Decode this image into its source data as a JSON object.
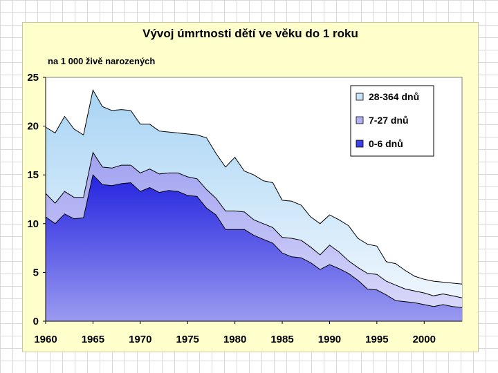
{
  "chart_data": {
    "type": "area",
    "stacked": true,
    "title": "Vývoj úmrtnosti dětí ve věku do 1 roku",
    "subtitle": "na 1 000 živě narozených",
    "xlabel": "",
    "ylabel": "",
    "xlim": [
      1960,
      2004
    ],
    "ylim": [
      0,
      25
    ],
    "yticks": [
      0,
      5,
      10,
      15,
      20,
      25
    ],
    "xticks": [
      1960,
      1965,
      1970,
      1975,
      1980,
      1985,
      1990,
      1995,
      2000
    ],
    "legend_position": "top-right",
    "x": [
      1960,
      1961,
      1962,
      1963,
      1964,
      1965,
      1966,
      1967,
      1968,
      1969,
      1970,
      1971,
      1972,
      1973,
      1974,
      1975,
      1976,
      1977,
      1978,
      1979,
      1980,
      1981,
      1982,
      1983,
      1984,
      1985,
      1986,
      1987,
      1988,
      1989,
      1990,
      1991,
      1992,
      1993,
      1994,
      1995,
      1996,
      1997,
      1998,
      1999,
      2000,
      2001,
      2002,
      2003,
      2004
    ],
    "series": [
      {
        "name": "0-6 dnů",
        "color": "#3a3ae8",
        "values": [
          10.7,
          10.0,
          11.0,
          10.5,
          10.6,
          15.0,
          14.0,
          13.9,
          14.1,
          14.2,
          13.3,
          13.7,
          13.2,
          13.4,
          13.3,
          12.9,
          12.8,
          11.6,
          10.9,
          9.4,
          9.4,
          9.4,
          8.8,
          8.4,
          8.0,
          7.0,
          6.6,
          6.5,
          6.0,
          5.3,
          5.8,
          5.4,
          4.9,
          4.2,
          3.3,
          3.2,
          2.7,
          2.1,
          2.0,
          1.9,
          1.7,
          1.5,
          1.7,
          1.5,
          1.4
        ]
      },
      {
        "name": "7-27 dnů",
        "color": "#b8b8f4",
        "values": [
          2.4,
          2.1,
          2.3,
          2.2,
          2.1,
          2.3,
          1.8,
          1.8,
          1.9,
          1.8,
          1.9,
          1.9,
          1.9,
          1.8,
          1.9,
          1.9,
          1.8,
          1.9,
          1.7,
          1.9,
          1.9,
          1.8,
          1.6,
          1.6,
          1.6,
          1.6,
          1.9,
          1.8,
          1.6,
          1.5,
          2.0,
          1.7,
          1.3,
          1.3,
          1.6,
          1.6,
          1.4,
          1.6,
          1.3,
          1.2,
          1.2,
          1.1,
          1.1,
          1.1,
          1.0
        ]
      },
      {
        "name": "28-364 dnů",
        "color": "#c8e4f8",
        "values": [
          6.8,
          7.2,
          7.7,
          7.0,
          6.4,
          6.4,
          6.2,
          5.9,
          5.7,
          5.6,
          5.0,
          4.6,
          4.4,
          4.2,
          4.1,
          4.4,
          4.5,
          5.3,
          4.6,
          4.5,
          5.5,
          4.2,
          4.6,
          4.4,
          4.6,
          3.8,
          3.8,
          3.6,
          3.1,
          3.2,
          3.1,
          3.3,
          3.6,
          3.0,
          3.0,
          2.9,
          2.0,
          2.2,
          1.9,
          1.5,
          1.4,
          1.5,
          1.2,
          1.3,
          1.4
        ]
      }
    ]
  }
}
